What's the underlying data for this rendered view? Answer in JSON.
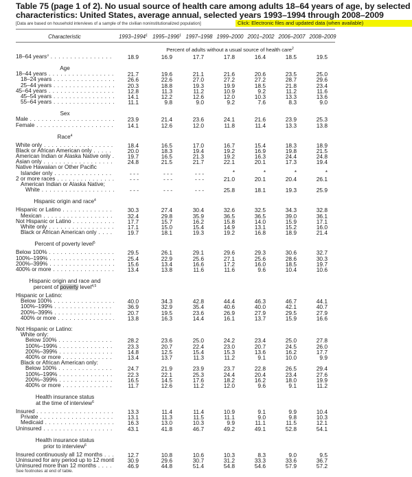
{
  "title": {
    "line1": "Table 75 (page 1 of 2). No usual source of health care among adults 18–64 years of age, by selected",
    "line2": "characteristics: United States, average annual, selected years 1993–1994 through 2008–2009"
  },
  "note": "[Data are based on household interviews of a sample of the civilian noninstitutionalized population]",
  "link_label": "Click: Electronic files and updated data (when available)",
  "highlight_color": "#f4f400",
  "table": {
    "columns": [
      {
        "label": "Characteristic",
        "sup": ""
      },
      {
        "label": "1993–1994",
        "sup": "1"
      },
      {
        "label": "1995–1996",
        "sup": "1"
      },
      {
        "label": "1997–1998",
        "sup": ""
      },
      {
        "label": "1999–2000",
        "sup": ""
      },
      {
        "label": "2001–2002",
        "sup": ""
      },
      {
        "label": "2006–2007",
        "sup": ""
      },
      {
        "label": "2008–2009",
        "sup": ""
      }
    ],
    "unit": {
      "text": "Percent of adults without a usual source of health care",
      "sup": "2"
    },
    "sections": [
      {
        "heading": null,
        "groups": [
          [
            {
              "label": "18–64 years",
              "sup": "3",
              "indent": 0,
              "values": [
                "18.9",
                "16.9",
                "17.7",
                "17.8",
                "16.4",
                "18.5",
                "19.5"
              ]
            }
          ]
        ]
      },
      {
        "heading": {
          "lines": [
            [
              {
                "t": "Age"
              }
            ]
          ],
          "sup": ""
        },
        "groups": [
          [
            {
              "label": "18–44 years",
              "indent": 0,
              "values": [
                "21.7",
                "19.6",
                "21.1",
                "21.6",
                "20.6",
                "23.5",
                "25.0"
              ]
            },
            {
              "label": "18–24 years",
              "indent": 1,
              "values": [
                "26.6",
                "22.6",
                "27.0",
                "27.2",
                "27.2",
                "28.7",
                "29.6"
              ]
            },
            {
              "label": "25–44 years",
              "indent": 1,
              "values": [
                "20.3",
                "18.8",
                "19.3",
                "19.9",
                "18.5",
                "21.8",
                "23.4"
              ]
            },
            {
              "label": "45–64 years",
              "indent": 0,
              "values": [
                "12.8",
                "11.3",
                "11.2",
                "10.9",
                "9.2",
                "11.2",
                "11.6"
              ]
            },
            {
              "label": "45–54 years",
              "indent": 1,
              "values": [
                "14.1",
                "12.2",
                "12.6",
                "12.0",
                "10.3",
                "13.3",
                "13.6"
              ]
            },
            {
              "label": "55–64 years",
              "indent": 1,
              "values": [
                "11.1",
                "9.8",
                "9.0",
                "9.2",
                "7.6",
                "8.3",
                "9.0"
              ]
            }
          ]
        ]
      },
      {
        "heading": {
          "lines": [
            [
              {
                "t": "Sex"
              }
            ]
          ],
          "sup": ""
        },
        "groups": [
          [
            {
              "label": "Male",
              "indent": 0,
              "values": [
                "23.9",
                "21.4",
                "23.6",
                "24.1",
                "21.6",
                "23.9",
                "25.3"
              ]
            },
            {
              "label": "Female",
              "indent": 0,
              "values": [
                "14.1",
                "12.6",
                "12.0",
                "11.8",
                "11.4",
                "13.3",
                "13.8"
              ]
            }
          ]
        ]
      },
      {
        "heading": {
          "lines": [
            [
              {
                "t": "Race"
              }
            ]
          ],
          "sup": "4"
        },
        "groups": [
          [
            {
              "label": "White only",
              "indent": 0,
              "values": [
                "18.4",
                "16.5",
                "17.0",
                "16.7",
                "15.4",
                "18.3",
                "18.9"
              ]
            },
            {
              "label": "Black or African American only",
              "indent": 0,
              "values": [
                "20.0",
                "18.3",
                "19.4",
                "19.2",
                "16.9",
                "19.8",
                "21.5"
              ]
            },
            {
              "label": "American Indian or Alaska Native only",
              "indent": 0,
              "values": [
                "19.7",
                "16.5",
                "21.3",
                "19.2",
                "16.3",
                "24.4",
                "24.8"
              ]
            },
            {
              "label": "Asian only",
              "indent": 0,
              "values": [
                "24.8",
                "21.5",
                "21.7",
                "22.1",
                "20.1",
                "17.3",
                "19.4"
              ]
            },
            {
              "label": "Native Hawaiian or Other Pacific",
              "indent": 0,
              "values": []
            },
            {
              "label": "Islander only",
              "indent": 1,
              "values": [
                "- - -",
                "- - -",
                "- - -",
                "*",
                "*",
                "*",
                "*"
              ]
            },
            {
              "label": "2 or more races",
              "indent": 0,
              "values": [
                "- - -",
                "- - -",
                "- - -",
                "21.0",
                "20.1",
                "20.4",
                "26.1"
              ]
            },
            {
              "label": "American Indian or Alaska Native;",
              "indent": 1,
              "values": []
            },
            {
              "label": "White",
              "indent": 2,
              "values": [
                "- - -",
                "- - -",
                "- - -",
                "25.8",
                "18.1",
                "19.3",
                "25.9"
              ]
            }
          ]
        ]
      },
      {
        "heading": {
          "lines": [
            [
              {
                "t": "Hispanic origin and race"
              }
            ]
          ],
          "sup": "4"
        },
        "groups": [
          [
            {
              "label": "Hispanic or Latino",
              "indent": 0,
              "values": [
                "30.3",
                "27.4",
                "30.4",
                "32.6",
                "32.5",
                "34.3",
                "32.8"
              ]
            },
            {
              "label": "Mexican",
              "indent": 1,
              "values": [
                "32.4",
                "29.8",
                "35.9",
                "36.5",
                "36.5",
                "39.0",
                "36.1"
              ]
            },
            {
              "label": "Not Hispanic or Latino",
              "indent": 0,
              "values": [
                "17.7",
                "15.7",
                "16.2",
                "15.8",
                "14.0",
                "15.9",
                "17.1"
              ]
            },
            {
              "label": "White only",
              "indent": 1,
              "values": [
                "17.1",
                "15.0",
                "15.4",
                "14.9",
                "13.1",
                "15.2",
                "16.0"
              ]
            },
            {
              "label": "Black or African American only",
              "indent": 1,
              "values": [
                "19.7",
                "18.1",
                "19.3",
                "19.2",
                "16.8",
                "18.9",
                "21.4"
              ]
            }
          ]
        ]
      },
      {
        "heading": {
          "lines": [
            [
              {
                "t": "Percent of poverty level"
              }
            ]
          ],
          "sup": "5"
        },
        "groups": [
          [
            {
              "label": "Below 100%",
              "indent": 0,
              "values": [
                "29.5",
                "26.1",
                "29.1",
                "29.6",
                "29.3",
                "30.6",
                "32.7"
              ]
            },
            {
              "label": "100%–199%",
              "indent": 0,
              "values": [
                "25.4",
                "22.9",
                "25.6",
                "27.1",
                "25.6",
                "28.6",
                "30.3"
              ]
            },
            {
              "label": "200%–399%",
              "indent": 0,
              "values": [
                "15.6",
                "13.4",
                "16.6",
                "17.2",
                "16.0",
                "18.5",
                "19.7"
              ]
            },
            {
              "label": "400% or more",
              "indent": 0,
              "values": [
                "13.4",
                "13.8",
                "11.6",
                "11.6",
                "9.6",
                "10.4",
                "10.6"
              ]
            }
          ]
        ]
      },
      {
        "heading": {
          "lines": [
            [
              {
                "t": "Hispanic origin and race and"
              }
            ],
            [
              {
                "t": "percent of "
              },
              {
                "t": "poverty",
                "hl": true
              },
              {
                "t": " level"
              }
            ]
          ],
          "sup": "4,5"
        },
        "groups": [
          [
            {
              "label": "Hispanic or Latino:",
              "indent": 0,
              "values": []
            },
            {
              "label": "Below 100%",
              "indent": 1,
              "values": [
                "40.0",
                "34.3",
                "42.8",
                "44.4",
                "46.3",
                "46.7",
                "44.1"
              ]
            },
            {
              "label": "100%–199%",
              "indent": 1,
              "values": [
                "36.9",
                "32.9",
                "35.4",
                "40.6",
                "40.0",
                "42.1",
                "40.7"
              ]
            },
            {
              "label": "200%–399%",
              "indent": 1,
              "values": [
                "20.7",
                "19.5",
                "23.6",
                "26.9",
                "27.9",
                "29.5",
                "27.9"
              ]
            },
            {
              "label": "400% or more",
              "indent": 1,
              "values": [
                "13.8",
                "16.3",
                "14.4",
                "16.1",
                "13.7",
                "15.9",
                "16.6"
              ]
            }
          ],
          [
            {
              "label": "Not Hispanic or Latino:",
              "indent": 0,
              "values": []
            },
            {
              "label": "White only:",
              "indent": 1,
              "values": []
            },
            {
              "label": "Below 100%",
              "indent": 2,
              "values": [
                "28.2",
                "23.6",
                "25.0",
                "24.2",
                "23.4",
                "25.0",
                "27.8"
              ]
            },
            {
              "label": "100%–199%",
              "indent": 2,
              "values": [
                "23.3",
                "20.7",
                "22.4",
                "23.0",
                "20.7",
                "24.5",
                "26.0"
              ]
            },
            {
              "label": "200%–399%",
              "indent": 2,
              "values": [
                "14.8",
                "12.5",
                "15.4",
                "15.3",
                "13.6",
                "16.2",
                "17.7"
              ]
            },
            {
              "label": "400% or more",
              "indent": 2,
              "values": [
                "13.4",
                "13.7",
                "11.3",
                "11.2",
                "9.1",
                "10.0",
                "9.9"
              ]
            },
            {
              "label": "Black or African American only:",
              "indent": 1,
              "values": []
            },
            {
              "label": "Below 100%",
              "indent": 2,
              "values": [
                "24.7",
                "21.9",
                "23.9",
                "23.7",
                "22.8",
                "26.5",
                "29.4"
              ]
            },
            {
              "label": "100%–199%",
              "indent": 2,
              "values": [
                "22.3",
                "22.1",
                "25.3",
                "24.4",
                "20.4",
                "23.4",
                "27.6"
              ]
            },
            {
              "label": "200%–399%",
              "indent": 2,
              "values": [
                "16.5",
                "14.5",
                "17.6",
                "18.2",
                "16.2",
                "18.0",
                "19.9"
              ]
            },
            {
              "label": "400% or more",
              "indent": 2,
              "values": [
                "11.7",
                "12.6",
                "11.2",
                "12.0",
                "9.6",
                "9.1",
                "11.2"
              ]
            }
          ]
        ]
      },
      {
        "heading": {
          "lines": [
            [
              {
                "t": "Health insurance status"
              }
            ],
            [
              {
                "t": "at the time of interview"
              }
            ]
          ],
          "sup": "6"
        },
        "groups": [
          [
            {
              "label": "Insured",
              "indent": 0,
              "values": [
                "13.3",
                "11.4",
                "11.4",
                "10.9",
                "9.1",
                "9.9",
                "10.4"
              ]
            },
            {
              "label": "Private",
              "indent": 1,
              "values": [
                "13.1",
                "11.3",
                "11.5",
                "11.1",
                "9.0",
                "9.8",
                "10.3"
              ]
            },
            {
              "label": "Medicaid",
              "indent": 1,
              "values": [
                "16.3",
                "13.0",
                "10.3",
                "9.9",
                "11.1",
                "11.5",
                "12.1"
              ]
            },
            {
              "label": "Uninsured",
              "indent": 0,
              "values": [
                "43.1",
                "41.8",
                "46.7",
                "49.2",
                "49.1",
                "52.8",
                "54.1"
              ]
            }
          ]
        ]
      },
      {
        "heading": {
          "lines": [
            [
              {
                "t": "Health insurance status"
              }
            ],
            [
              {
                "t": "prior to interview"
              }
            ]
          ],
          "sup": "6"
        },
        "groups": [
          [
            {
              "label": "Insured continuously all 12 months",
              "indent": 0,
              "values": [
                "12.7",
                "10.8",
                "10.6",
                "10.3",
                "8.3",
                "9.0",
                "9.5"
              ]
            },
            {
              "label": "Uninsured for any period up to 12 months",
              "indent": 0,
              "values": [
                "30.9",
                "29.6",
                "30.7",
                "31.2",
                "33.3",
                "33.6",
                "36.7"
              ]
            },
            {
              "label": "Uninsured more than 12 months",
              "indent": 0,
              "values": [
                "46.9",
                "44.8",
                "51.4",
                "54.8",
                "54.6",
                "57.9",
                "57.2"
              ]
            }
          ]
        ]
      }
    ]
  },
  "footnote": "See footnotes at end of table."
}
